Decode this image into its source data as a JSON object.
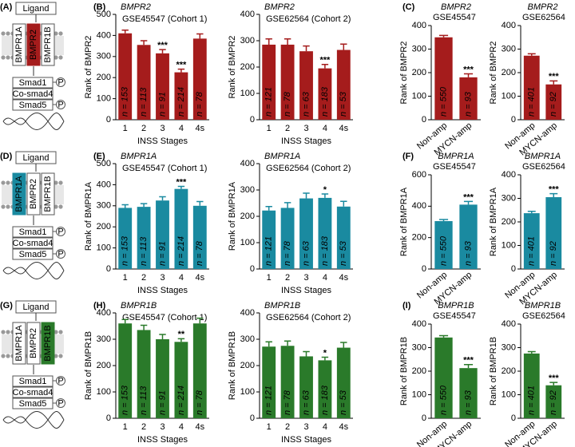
{
  "diagrams": [
    {
      "panel": "(A)",
      "ligand": "Ligand",
      "receptors": [
        "BMPR1A",
        "BMPR2",
        "BMPR1B"
      ],
      "highlight": 1,
      "color": "#a51c1c",
      "smads": [
        "Smad1",
        "Co-smad4",
        "Smad5"
      ],
      "phospho": "P"
    },
    {
      "panel": "(D)",
      "ligand": "Ligand",
      "receptors": [
        "BMPR1A",
        "BMPR2",
        "BMPR1B"
      ],
      "highlight": 0,
      "color": "#1a8aa0",
      "smads": [
        "Smad1",
        "Co-smad4",
        "Smad5"
      ],
      "phospho": "P"
    },
    {
      "panel": "(G)",
      "ligand": "Ligand",
      "receptors": [
        "BMPR1A",
        "BMPR2",
        "BMPR1B"
      ],
      "highlight": 2,
      "color": "#2a7a2a",
      "smads": [
        "Smad1",
        "Co-smad4",
        "Smad5"
      ],
      "phospho": "P"
    }
  ],
  "chart_data": [
    {
      "type": "bar",
      "panel": "(B)",
      "title": "BMPR2",
      "subtitle": "GSE45547 (Cohort 1)",
      "ylabel": "Rank of BMPR2",
      "xlabel": "INSS Stages",
      "categories": [
        "1",
        "2",
        "3",
        "4",
        "4s"
      ],
      "values": [
        410,
        355,
        315,
        225,
        385
      ],
      "errors": [
        15,
        20,
        18,
        15,
        22
      ],
      "n_labels": [
        "n = 153",
        "n = 113",
        "n = 91",
        "n = 214",
        "n = 78"
      ],
      "significance": [
        null,
        null,
        "***",
        "***",
        null
      ],
      "color": "#a51c1c",
      "ylim": [
        0,
        500
      ],
      "yticks": [
        0,
        100,
        200,
        300,
        400,
        500
      ]
    },
    {
      "type": "bar",
      "title": "BMPR2",
      "subtitle": "GSE62564 (Cohort 2)",
      "ylabel": "Rank of BMPR2",
      "xlabel": "INSS Stages",
      "categories": [
        "1",
        "2",
        "3",
        "4",
        "4s"
      ],
      "values": [
        285,
        285,
        260,
        195,
        265
      ],
      "errors": [
        22,
        22,
        20,
        15,
        22
      ],
      "n_labels": [
        "n = 121",
        "n = 78",
        "n = 63",
        "n = 183",
        "n = 53"
      ],
      "significance": [
        null,
        null,
        null,
        "***",
        null
      ],
      "color": "#a51c1c",
      "ylim": [
        0,
        400
      ],
      "yticks": [
        0,
        100,
        200,
        300,
        400
      ]
    },
    {
      "type": "bar",
      "panel": "(C)",
      "title": "BMPR2",
      "subtitle": "GSE45547",
      "ylabel": "Rank of BMPR2",
      "categories": [
        "Non-amp",
        "MYCN-amp"
      ],
      "values": [
        350,
        180
      ],
      "errors": [
        8,
        15
      ],
      "n_labels": [
        "n = 550",
        "n = 93"
      ],
      "significance": [
        null,
        "***"
      ],
      "color": "#a51c1c",
      "ylim": [
        0,
        400
      ],
      "yticks": [
        0,
        100,
        200,
        300,
        400
      ]
    },
    {
      "type": "bar",
      "title": "BMPR2",
      "subtitle": "GSE62564",
      "ylabel": "Rank of BMPR2",
      "categories": [
        "Non-amp",
        "MYCN-amp"
      ],
      "values": [
        272,
        150
      ],
      "errors": [
        8,
        15
      ],
      "n_labels": [
        "n = 401",
        "n = 92"
      ],
      "significance": [
        null,
        "***"
      ],
      "color": "#a51c1c",
      "ylim": [
        0,
        400
      ],
      "yticks": [
        0,
        100,
        200,
        300,
        400
      ]
    },
    {
      "type": "bar",
      "panel": "(E)",
      "title": "BMPR1A",
      "subtitle": "GSE45547 (Cohort 1)",
      "ylabel": "Rank of BMPR1A",
      "xlabel": "INSS Stages",
      "categories": [
        "1",
        "2",
        "3",
        "4",
        "4s"
      ],
      "values": [
        290,
        295,
        325,
        380,
        300
      ],
      "errors": [
        15,
        15,
        18,
        12,
        20
      ],
      "n_labels": [
        "n = 153",
        "n = 113",
        "n = 91",
        "n = 214",
        "n = 78"
      ],
      "significance": [
        null,
        null,
        null,
        "***",
        null
      ],
      "color": "#1a8aa0",
      "ylim": [
        0,
        500
      ],
      "yticks": [
        0,
        100,
        200,
        300,
        400,
        500
      ]
    },
    {
      "type": "bar",
      "title": "BMPR1A",
      "subtitle": "GSE62564 (Cohort 2)",
      "ylabel": "Rank of BMPR1A",
      "xlabel": "INSS Stages",
      "categories": [
        "1",
        "2",
        "3",
        "4",
        "4s"
      ],
      "values": [
        222,
        232,
        268,
        270,
        237
      ],
      "errors": [
        15,
        20,
        20,
        15,
        20
      ],
      "n_labels": [
        "n = 121",
        "n = 78",
        "n = 63",
        "n = 183",
        "n = 53"
      ],
      "significance": [
        null,
        null,
        null,
        "*",
        null
      ],
      "color": "#1a8aa0",
      "ylim": [
        0,
        400
      ],
      "yticks": [
        0,
        100,
        200,
        300,
        400
      ]
    },
    {
      "type": "bar",
      "panel": "(F)",
      "title": "BMPR1A",
      "subtitle": "GSE45547",
      "ylabel": "Rank of BMPR1A",
      "categories": [
        "Non-amp",
        "MYCN-amp"
      ],
      "values": [
        305,
        410
      ],
      "errors": [
        10,
        20
      ],
      "n_labels": [
        "n = 550",
        "n = 93"
      ],
      "significance": [
        null,
        "***"
      ],
      "color": "#1a8aa0",
      "ylim": [
        0,
        600
      ],
      "yticks": [
        0,
        200,
        400,
        600
      ]
    },
    {
      "type": "bar",
      "title": "BMPR1A",
      "subtitle": "GSE62564",
      "ylabel": "Rank of BMPR1A",
      "categories": [
        "Non-amp",
        "MYCN-amp"
      ],
      "values": [
        237,
        305
      ],
      "errors": [
        8,
        15
      ],
      "n_labels": [
        "n = 401",
        "n = 92"
      ],
      "significance": [
        null,
        "***"
      ],
      "color": "#1a8aa0",
      "ylim": [
        0,
        400
      ],
      "yticks": [
        0,
        100,
        200,
        300,
        400
      ]
    },
    {
      "type": "bar",
      "panel": "(H)",
      "title": "BMPR1B",
      "subtitle": "GSE45547 (Cohort 1)",
      "ylabel": "Rank of BMPR1B",
      "xlabel": "INSS Stages",
      "categories": [
        "1",
        "2",
        "3",
        "4",
        "4s"
      ],
      "values": [
        360,
        335,
        300,
        290,
        360
      ],
      "errors": [
        15,
        18,
        18,
        12,
        20
      ],
      "n_labels": [
        "n = 153",
        "n = 113",
        "n = 91",
        "n = 214",
        "n = 78"
      ],
      "significance": [
        null,
        null,
        null,
        "**",
        null
      ],
      "color": "#2a7a2a",
      "ylim": [
        0,
        400
      ],
      "yticks": [
        0,
        100,
        200,
        300,
        400
      ]
    },
    {
      "type": "bar",
      "title": "BMPR1B",
      "subtitle": "GSE62564 (Cohort 2)",
      "ylabel": "Rank of BMPR1B",
      "xlabel": "INSS Stages",
      "categories": [
        "1",
        "2",
        "3",
        "4",
        "4s"
      ],
      "values": [
        272,
        275,
        235,
        220,
        268
      ],
      "errors": [
        18,
        18,
        18,
        12,
        20
      ],
      "n_labels": [
        "n = 121",
        "n = 78",
        "n = 63",
        "n = 183",
        "n = 53"
      ],
      "significance": [
        null,
        null,
        null,
        "*",
        null
      ],
      "color": "#2a7a2a",
      "ylim": [
        0,
        400
      ],
      "yticks": [
        0,
        100,
        200,
        300,
        400
      ]
    },
    {
      "type": "bar",
      "panel": "(I)",
      "title": "BMPR1B",
      "subtitle": "GSE45547",
      "ylabel": "Rank of BMPR1B",
      "categories": [
        "Non-amp",
        "MYCN-amp"
      ],
      "values": [
        343,
        213
      ],
      "errors": [
        8,
        15
      ],
      "n_labels": [
        "n = 550",
        "n = 93"
      ],
      "significance": [
        null,
        "***"
      ],
      "color": "#2a7a2a",
      "ylim": [
        0,
        400
      ],
      "yticks": [
        0,
        100,
        200,
        300,
        400
      ]
    },
    {
      "type": "bar",
      "title": "BMPR1B",
      "subtitle": "GSE62564",
      "ylabel": "Rank of BMPR1B",
      "categories": [
        "Non-amp",
        "MYCN-amp"
      ],
      "values": [
        275,
        140
      ],
      "errors": [
        8,
        12
      ],
      "n_labels": [
        "n = 401",
        "n = 92"
      ],
      "significance": [
        null,
        "***"
      ],
      "color": "#2a7a2a",
      "ylim": [
        0,
        400
      ],
      "yticks": [
        0,
        100,
        200,
        300,
        400
      ]
    }
  ]
}
